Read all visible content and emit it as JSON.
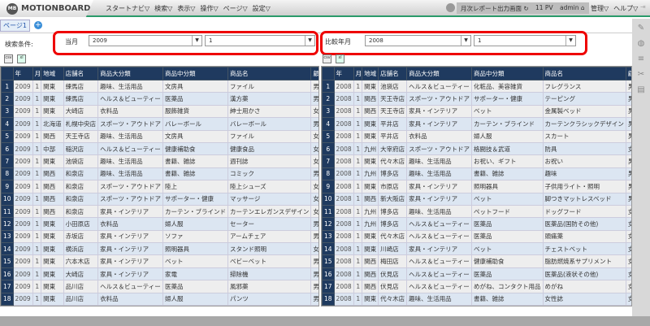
{
  "header": {
    "logo": "MOTIONBOARD",
    "logo_badge": "MB",
    "menu": [
      "スタートナビ▽",
      "検索▽",
      "表示▽",
      "操作▽",
      "ページ▽",
      "設定▽"
    ],
    "board_name": "月次レポート出力画面",
    "pv": "11 PV",
    "user": "admin",
    "right_menu": [
      "管理▽",
      "ヘルプ▽"
    ]
  },
  "tabs": {
    "page": "ページ1",
    "add": "+"
  },
  "filter": {
    "label": "検索条件:",
    "current_label": "当月",
    "current_year": "2009",
    "current_month": "1",
    "compare_label": "比較年月",
    "compare_year": "2008",
    "compare_month": "1"
  },
  "columns": [
    "年",
    "月",
    "地域",
    "店舗名",
    "商品大分類",
    "商品中分類",
    "商品名",
    "顧客性別"
  ],
  "left_rows": [
    [
      "2009",
      "1",
      "関東",
      "練馬店",
      "趣味、生活用品",
      "文房具",
      "ファイル",
      "男"
    ],
    [
      "2009",
      "1",
      "関東",
      "練馬店",
      "ヘルス＆ビューティー",
      "医薬品",
      "漢方薬",
      "男"
    ],
    [
      "2009",
      "1",
      "関東",
      "大崎店",
      "衣料品",
      "服飾雑貨",
      "紳士用かさ",
      "女"
    ],
    [
      "2009",
      "1",
      "北海道",
      "札幌中央店",
      "スポーツ・アウトドア",
      "バレーボール",
      "バレーボール",
      "男"
    ],
    [
      "2009",
      "1",
      "関西",
      "天王寺店",
      "趣味、生活用品",
      "文房具",
      "ファイル",
      "女"
    ],
    [
      "2009",
      "1",
      "中部",
      "稲沢店",
      "ヘルス＆ビューティー",
      "健康補助食",
      "健康食品",
      "女"
    ],
    [
      "2009",
      "1",
      "関東",
      "池袋店",
      "趣味、生活用品",
      "書籍、雑誌",
      "週刊誌",
      "女"
    ],
    [
      "2009",
      "1",
      "関西",
      "和泉店",
      "趣味、生活用品",
      "書籍、雑誌",
      "コミック",
      "男"
    ],
    [
      "2009",
      "1",
      "関西",
      "和泉店",
      "スポーツ・アウトドア",
      "陸上",
      "陸上シューズ",
      "女"
    ],
    [
      "2009",
      "1",
      "関西",
      "和泉店",
      "スポーツ・アウトドア",
      "サポーター・健康",
      "マッサージ",
      "女"
    ],
    [
      "2009",
      "1",
      "関西",
      "和泉店",
      "家具・インテリア",
      "カーテン・ブラインド",
      "カーテンエレガンスデザイン",
      "女"
    ],
    [
      "2009",
      "1",
      "関東",
      "小田原店",
      "衣料品",
      "婦人服",
      "セーター",
      "男"
    ],
    [
      "2009",
      "1",
      "関東",
      "赤坂店",
      "家具・インテリア",
      "ソファ",
      "アームチェア",
      "男"
    ],
    [
      "2009",
      "1",
      "関東",
      "横浜店",
      "家具・インテリア",
      "照明器具",
      "スタンド照明",
      "女"
    ],
    [
      "2009",
      "1",
      "関東",
      "六本木店",
      "家具・インテリア",
      "ベット",
      "ベビーベット",
      "男"
    ],
    [
      "2009",
      "1",
      "関東",
      "大崎店",
      "家具・インテリア",
      "家電",
      "掃除機",
      "男"
    ],
    [
      "2009",
      "1",
      "関東",
      "品川店",
      "ヘルス＆ビューティー",
      "医薬品",
      "風邪薬",
      "男"
    ],
    [
      "2009",
      "1",
      "関東",
      "品川店",
      "衣料品",
      "婦人服",
      "パンツ",
      "男"
    ]
  ],
  "right_rows": [
    [
      "2008",
      "1",
      "関東",
      "池袋店",
      "ヘルス＆ビューティー",
      "化粧品、美容雑貨",
      "フレグランス",
      "男"
    ],
    [
      "2008",
      "1",
      "関西",
      "天王寺店",
      "スポーツ・アウトドア",
      "サポーター・健康",
      "テーピング",
      "男"
    ],
    [
      "2008",
      "1",
      "関西",
      "天王寺店",
      "家具・インテリア",
      "ベット",
      "金属製ベッド",
      "男"
    ],
    [
      "2008",
      "1",
      "関東",
      "平井店",
      "家具・インテリア",
      "カーテン・ブラインド",
      "カーテンクラシックデザイン",
      "男"
    ],
    [
      "2008",
      "1",
      "関東",
      "平井店",
      "衣料品",
      "婦人服",
      "スカート",
      "男"
    ],
    [
      "2008",
      "1",
      "九州",
      "大宰府店",
      "スポーツ・アウトドア",
      "格闘技＆武道",
      "防具",
      "女"
    ],
    [
      "2008",
      "1",
      "関東",
      "代々木店",
      "趣味、生活用品",
      "お祝い、ギフト",
      "お祝い",
      "男"
    ],
    [
      "2008",
      "1",
      "九州",
      "博多店",
      "趣味、生活用品",
      "書籍、雑誌",
      "趣味",
      "男"
    ],
    [
      "2008",
      "1",
      "関東",
      "市原店",
      "家具・インテリア",
      "照明器具",
      "子供用ライト・照明",
      "男"
    ],
    [
      "2008",
      "1",
      "関西",
      "新大阪店",
      "家具・インテリア",
      "ベット",
      "脚つきマットレスベッド",
      "男"
    ],
    [
      "2008",
      "1",
      "九州",
      "博多店",
      "趣味、生活用品",
      "ペットフード",
      "ドッグフード",
      "女"
    ],
    [
      "2008",
      "1",
      "九州",
      "博多店",
      "ヘルス＆ビューティー",
      "医薬品",
      "医薬品(国防その他)",
      "女"
    ],
    [
      "2008",
      "1",
      "関東",
      "代々木店",
      "ヘルス＆ビューティー",
      "医薬品",
      "頭痛薬",
      "女"
    ],
    [
      "2008",
      "1",
      "関東",
      "川崎店",
      "家具・インテリア",
      "ベット",
      "チェストベット",
      "女"
    ],
    [
      "2008",
      "1",
      "関西",
      "梅田店",
      "ヘルス＆ビューティー",
      "健康補助食",
      "脂肪燃焼系サプリメント",
      "女"
    ],
    [
      "2008",
      "1",
      "関西",
      "伏見店",
      "ヘルス＆ビューティー",
      "医薬品",
      "医薬品(液状その他)",
      "女"
    ],
    [
      "2008",
      "1",
      "関西",
      "伏見店",
      "ヘルス＆ビューティー",
      "めがね、コンタクト用品",
      "めがね",
      "女"
    ],
    [
      "2008",
      "1",
      "関東",
      "代々木店",
      "趣味、生活用品",
      "書籍、雑誌",
      "女性誌",
      "女"
    ]
  ]
}
